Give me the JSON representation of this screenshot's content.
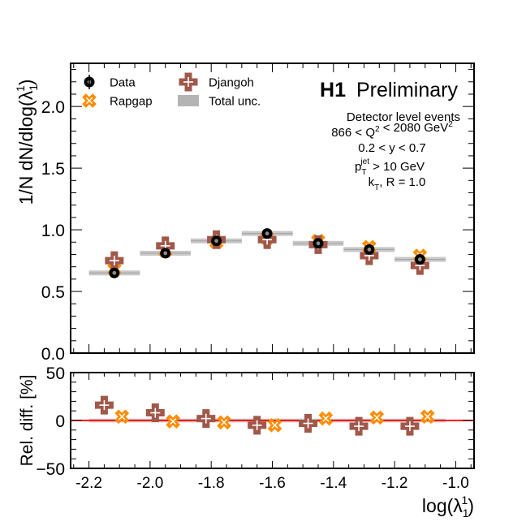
{
  "chart_data": [
    {
      "type": "scatter",
      "title": "H1 Preliminary",
      "title_bold": "H1",
      "title_rest": "Preliminary",
      "ylabel": "1/N dN/dlog(λ₁¹)",
      "ylim": [
        0.0,
        2.35
      ],
      "xlim": [
        -2.26,
        -0.94
      ],
      "yticks": [
        0.0,
        0.5,
        1.0,
        1.5,
        2.0
      ],
      "ytick_labels": [
        "0.0",
        "0.5",
        "1.0",
        "1.5",
        "2.0"
      ],
      "bin_edges": [
        -2.2,
        -2.033,
        -1.867,
        -1.7,
        -1.533,
        -1.367,
        -1.2,
        -1.033
      ],
      "annotations": [
        "Detector level events",
        "866 < Q² < 2080 GeV²",
        "0.2 < y < 0.7",
        "p_T^jet > 10 GeV",
        "k_T, R = 1.0"
      ],
      "legend": [
        {
          "name": "Data",
          "marker": "circle",
          "color": "#000000"
        },
        {
          "name": "Rapgap",
          "marker": "x",
          "color": "#ff8c00"
        },
        {
          "name": "Djangoh",
          "marker": "plus",
          "color": "#a0584a"
        },
        {
          "name": "Total unc.",
          "marker": "box",
          "color": "#b4b4b4"
        }
      ],
      "legend_position": "top-left",
      "series": [
        {
          "name": "Data",
          "x": [
            -2.117,
            -1.95,
            -1.783,
            -1.617,
            -1.45,
            -1.283,
            -1.117
          ],
          "values": [
            0.65,
            0.81,
            0.91,
            0.97,
            0.89,
            0.84,
            0.76
          ]
        },
        {
          "name": "Rapgap",
          "x": [
            -2.117,
            -1.95,
            -1.783,
            -1.617,
            -1.45,
            -1.283,
            -1.117
          ],
          "values": [
            0.68,
            0.83,
            0.9,
            0.93,
            0.91,
            0.86,
            0.79
          ]
        },
        {
          "name": "Djangoh",
          "x": [
            -2.117,
            -1.95,
            -1.783,
            -1.617,
            -1.45,
            -1.283,
            -1.117
          ],
          "values": [
            0.75,
            0.87,
            0.92,
            0.92,
            0.88,
            0.79,
            0.71
          ]
        },
        {
          "name": "Total unc.",
          "values": [
            0.02,
            0.02,
            0.02,
            0.02,
            0.02,
            0.02,
            0.02
          ]
        }
      ]
    },
    {
      "type": "scatter",
      "ylabel": "Rel. diff. [%]",
      "xlabel": "log(λ₁¹)",
      "ylim": [
        -50,
        50
      ],
      "xlim": [
        -2.26,
        -0.94
      ],
      "yticks": [
        -50,
        0,
        50
      ],
      "ytick_labels": [
        "−50",
        "0",
        "50"
      ],
      "xticks": [
        -2.2,
        -2.0,
        -1.8,
        -1.6,
        -1.4,
        -1.2,
        -1.0
      ],
      "xtick_labels": [
        "-2.2",
        "-2.0",
        "-1.8",
        "-1.6",
        "-1.4",
        "-1.2",
        "-1.0"
      ],
      "reference_line": {
        "y": 0,
        "color": "#ff0000"
      },
      "series": [
        {
          "name": "Djangoh",
          "x": [
            -2.15,
            -1.983,
            -1.817,
            -1.65,
            -1.483,
            -1.317,
            -1.15
          ],
          "values": [
            16,
            8,
            2,
            -5,
            -3,
            -6,
            -6
          ]
        },
        {
          "name": "Rapgap",
          "x": [
            -2.092,
            -1.925,
            -1.758,
            -1.592,
            -1.425,
            -1.258,
            -1.092
          ],
          "values": [
            4,
            -1,
            -2,
            -5,
            2,
            3,
            4
          ]
        },
        {
          "name": "Total unc.",
          "values": [
            2,
            2,
            2,
            2,
            2,
            2,
            2
          ]
        }
      ]
    }
  ]
}
